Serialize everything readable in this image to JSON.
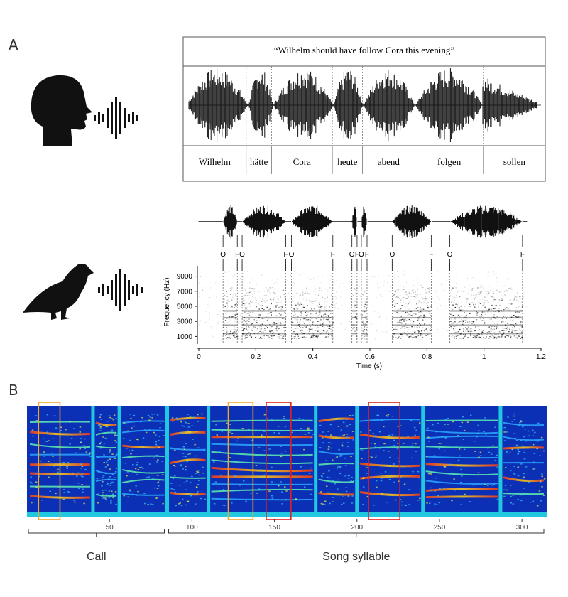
{
  "panel_a": {
    "letter": "A",
    "speech_box": {
      "sentence": "“Wilhelm should have follow Cora this evening”",
      "words": [
        "Wilhelm",
        "hätte",
        "Cora",
        "heute",
        "abend",
        "folgen",
        "sollen"
      ],
      "boundaries_sec_frac": [
        0.0,
        0.174,
        0.244,
        0.412,
        0.495,
        0.64,
        0.829,
        1.0
      ]
    },
    "human_icon": "human-head-speaking-icon",
    "bird_icon": "bird-singing-icon",
    "sound_icon": "sound-wave-icon",
    "bird_spectrogram": {
      "ylabel": "Frequency (Hz)",
      "xlabel": "Time (s)",
      "y_ticks": [
        1000,
        3000,
        5000,
        7000,
        9000
      ],
      "y_tick_labels": [
        "1000",
        "3000",
        "5000",
        "7000",
        "9000"
      ],
      "x_ticks": [
        0,
        0.2,
        0.4,
        0.6,
        0.8,
        1.0,
        1.2
      ],
      "x_tick_labels": [
        "0",
        "0.2",
        "0.4",
        "0.6",
        "0.8",
        "1",
        "1.2"
      ],
      "xlim": [
        0,
        1.2
      ],
      "ylim": [
        0,
        10000
      ],
      "onset_offset_markers": [
        {
          "label": "O",
          "t": 0.085
        },
        {
          "label": "F",
          "t": 0.135
        },
        {
          "label": "O",
          "t": 0.152
        },
        {
          "label": "F",
          "t": 0.305
        },
        {
          "label": "O",
          "t": 0.325
        },
        {
          "label": "F",
          "t": 0.47
        },
        {
          "label": "O",
          "t": 0.537
        },
        {
          "label": "F",
          "t": 0.555
        },
        {
          "label": "O",
          "t": 0.57
        },
        {
          "label": "F",
          "t": 0.59
        },
        {
          "label": "O",
          "t": 0.678
        },
        {
          "label": "F",
          "t": 0.815
        },
        {
          "label": "O",
          "t": 0.88
        },
        {
          "label": "F",
          "t": 1.135
        }
      ],
      "segments_sec": [
        [
          0.085,
          0.135
        ],
        [
          0.152,
          0.305
        ],
        [
          0.325,
          0.47
        ],
        [
          0.537,
          0.555
        ],
        [
          0.57,
          0.59
        ],
        [
          0.678,
          0.815
        ],
        [
          0.88,
          1.135
        ]
      ]
    }
  },
  "panel_b": {
    "letter": "B",
    "x_ticks": [
      50,
      100,
      150,
      200,
      250,
      300
    ],
    "x_tick_labels": [
      "50",
      "100",
      "150",
      "200",
      "250",
      "300"
    ],
    "xlim": [
      0,
      315
    ],
    "separators": [
      40,
      56,
      85,
      110,
      175,
      200,
      240,
      287
    ],
    "highlight_boxes": [
      {
        "color": "#f5a623",
        "x0": 7,
        "x1": 20
      },
      {
        "color": "#f5a623",
        "x0": 122,
        "x1": 137
      },
      {
        "color": "#e02020",
        "x0": 145,
        "x1": 160
      },
      {
        "color": "#e02020",
        "x0": 207,
        "x1": 226
      }
    ],
    "groups": [
      {
        "label": "Call",
        "x0": 0,
        "x1": 85
      },
      {
        "label": "Song syllable",
        "x0": 85,
        "x1": 315
      }
    ]
  },
  "colors": {
    "background_blue": "#0b2fb5",
    "separator_cyan": "#22c7e0",
    "orange_box": "#f5a623",
    "red_box": "#e02020",
    "waveform": "#111111"
  }
}
